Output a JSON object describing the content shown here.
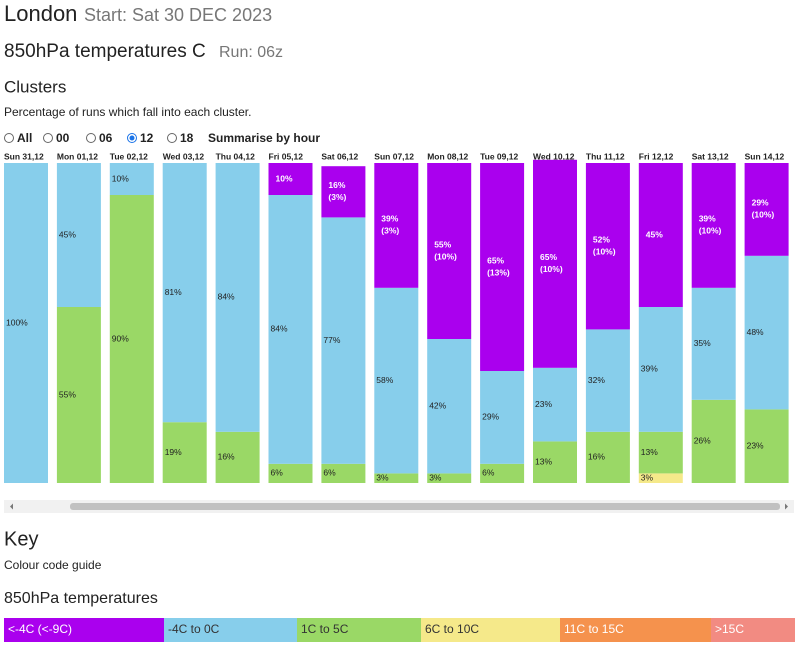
{
  "header": {
    "title": "London",
    "start": "Start: Sat 30 DEC 2023",
    "subtitle": "850hPa temperatures C",
    "run": "Run: 06z",
    "section": "Clusters",
    "description": "Percentage of runs which fall into each cluster."
  },
  "controls": {
    "options": [
      "All",
      "00",
      "06",
      "12",
      "18"
    ],
    "selected": "12",
    "summarise": "Summarise by hour"
  },
  "chart_data": {
    "type": "bar",
    "stacked": true,
    "categories": [
      "Sun 31,12",
      "Mon 01,12",
      "Tue 02,12",
      "Wed 03,12",
      "Thu 04,12",
      "Fri 05,12",
      "Sat 06,12",
      "Sun 07,12",
      "Mon 08,12",
      "Tue 09,12",
      "Wed 10,12",
      "Thu 11,12",
      "Fri 12,12",
      "Sat 13,12",
      "Sun 14,12"
    ],
    "ylim": [
      0,
      100
    ],
    "series": [
      {
        "color": "#f5e98a",
        "values": [
          null,
          null,
          null,
          null,
          null,
          null,
          null,
          null,
          null,
          null,
          null,
          null,
          3,
          null,
          null
        ],
        "value_labels": [
          null,
          null,
          null,
          null,
          null,
          null,
          null,
          null,
          null,
          null,
          null,
          null,
          "3%",
          null,
          null
        ]
      },
      {
        "color": "#9ad866",
        "values": [
          null,
          55,
          90,
          19,
          16,
          6,
          6,
          3,
          3,
          6,
          13,
          16,
          13,
          26,
          23
        ],
        "value_labels": [
          null,
          "55%",
          "90%",
          "19%",
          "16%",
          "6%",
          "6%",
          "3%",
          "3%",
          "6%",
          "13%",
          "16%",
          "13%",
          "26%",
          "23%"
        ]
      },
      {
        "color": "#87ceeb",
        "values": [
          100,
          45,
          10,
          81,
          84,
          84,
          77,
          58,
          42,
          29,
          23,
          32,
          39,
          35,
          48
        ],
        "value_labels": [
          "100%",
          "45%",
          "10%",
          "81%",
          "84%",
          "84%",
          "77%",
          "58%",
          "42%",
          "29%",
          "23%",
          "32%",
          "39%",
          "35%",
          "48%"
        ]
      },
      {
        "color": "#aa00ee",
        "values": [
          null,
          null,
          null,
          null,
          null,
          10,
          16,
          39,
          55,
          65,
          65,
          52,
          45,
          39,
          29
        ],
        "value_labels": [
          null,
          null,
          null,
          null,
          null,
          "10%",
          "16%",
          "39%",
          "55%",
          "65%",
          "65%",
          "52%",
          "45%",
          "39%",
          "29%"
        ],
        "sub_labels": [
          null,
          null,
          null,
          null,
          null,
          null,
          "(3%)",
          "(3%)",
          "(10%)",
          "(13%)",
          "(10%)",
          "(10%)",
          null,
          "(10%)",
          "(10%)"
        ]
      }
    ]
  },
  "key": {
    "title": "Key",
    "guide": "Colour code guide",
    "subtitle": "850hPa temperatures",
    "items": [
      {
        "label": "<-4C (<-9C)",
        "color": "#aa00ee"
      },
      {
        "label": "-4C to 0C",
        "color": "#87ceeb"
      },
      {
        "label": "1C to 5C",
        "color": "#9ad866"
      },
      {
        "label": "6C to 10C",
        "color": "#f5e98a"
      },
      {
        "label": "11C to 15C",
        "color": "#f5924d"
      },
      {
        "label": ">15C",
        "color": "#f28b82"
      }
    ]
  }
}
